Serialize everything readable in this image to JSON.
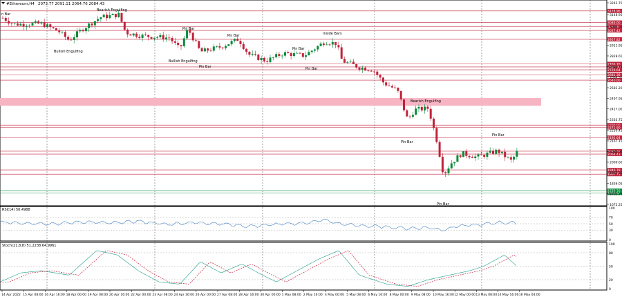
{
  "header": {
    "symbol_label": "#Ethereum,H4",
    "ohlc_label": "2073.77 2091.11 2064.76 2084.43"
  },
  "indicators": {
    "rsi_label": "RSI(14) 50.4988",
    "stoch_label": "Stoch(21,8,8) 51.2238 64.9961"
  },
  "price_axis": {
    "ticks": [
      "3242.70",
      "3148.95",
      "3055.20",
      "2911.95",
      "2828.65",
      "2744.75",
      "2664.50",
      "2581.20",
      "2497.95",
      "2417.00",
      "2333.75",
      "2250.45",
      "2167.15",
      "2083.90",
      "2000.60",
      "1917.30",
      "1836.05",
      "1753.75",
      "1672.25"
    ]
  },
  "level_labels": {
    "red": [
      "3178.96",
      "3089.00",
      "3055.82",
      "3027.42",
      "2957.82",
      "2766.76",
      "2743.00",
      "2720.64",
      "2681.38",
      "2640.00",
      "2290.00",
      "2271.90",
      "2192.64",
      "2086.63",
      "2064.43",
      "1940.78",
      "1907.75"
    ],
    "green": [
      "1779.39",
      "1761.67"
    ]
  },
  "rsi_axis": {
    "ticks": [
      "100",
      "70",
      "50",
      "30",
      "0"
    ]
  },
  "stoch_axis": {
    "ticks": [
      "100",
      "80",
      "50",
      "20",
      "0"
    ]
  },
  "time_axis": {
    "labels": [
      "14 Apr 2022",
      "15 Apr 08:00",
      "16 Apr 16:00",
      "18 Apr 00:00",
      "19 Apr 08:00",
      "20 Apr 16:00",
      "22 Apr 00:00",
      "23 Apr 08:00",
      "24 Apr 16:00",
      "26 Apr 00:00",
      "27 Apr 08:00",
      "28 Apr 16:00",
      "30 Apr 00:00",
      "1 May 08:00",
      "2 May 16:00",
      "4 May 00:00",
      "5 May 08:00",
      "6 May 16:00",
      "8 May 00:00",
      "9 May 08:00",
      "10 May 16:00",
      "12 May 00:00",
      "13 May 08:00",
      "14 May 16:00",
      "16 May 04:00"
    ]
  },
  "annotations": [
    {
      "text": "n Bar"
    },
    {
      "text": "Bearish Engulfing"
    },
    {
      "text": "Bullish Engulfing"
    },
    {
      "text": "Pin Bar"
    },
    {
      "text": "Pin Bar"
    },
    {
      "text": "Bullish Engulfing"
    },
    {
      "text": "Pin Bar"
    },
    {
      "text": "Inside Bars"
    },
    {
      "text": "Pin Bar"
    },
    {
      "text": "Pin Bar"
    },
    {
      "text": "Bearish Engulfing"
    },
    {
      "text": "Pin Bar"
    },
    {
      "text": "Pin Bar"
    },
    {
      "text": "Pin Bar"
    }
  ],
  "colors": {
    "bull": "#0a8a3a",
    "bear": "#c0223a",
    "level_red": "#c0223a",
    "level_green": "#0a8a3a",
    "zone": "#f7b5c3",
    "rsi_line": "#5b8fc7",
    "stoch_main": "#3aa89a",
    "stoch_signal": "#c0223a"
  }
}
